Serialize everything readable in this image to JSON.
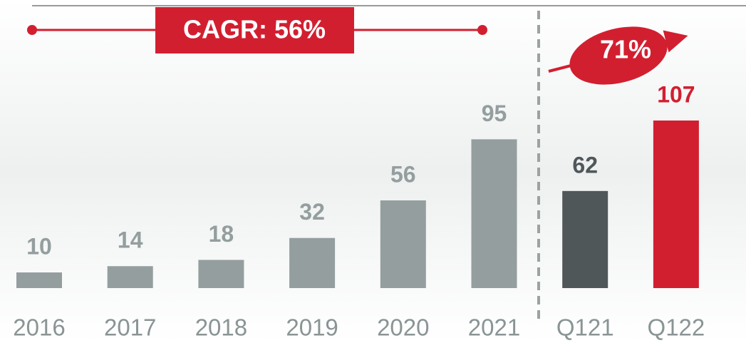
{
  "chart_data": {
    "type": "bar",
    "categories": [
      "2016",
      "2017",
      "2018",
      "2019",
      "2020",
      "2021",
      "Q121",
      "Q122"
    ],
    "values": [
      10,
      14,
      18,
      32,
      56,
      95,
      62,
      107
    ],
    "colors": [
      "#949e9e",
      "#949e9e",
      "#949e9e",
      "#949e9e",
      "#949e9e",
      "#949e9e",
      "#4f5759",
      "#d21f30"
    ],
    "annotations": [
      "CAGR: 56%",
      "71%"
    ]
  }
}
